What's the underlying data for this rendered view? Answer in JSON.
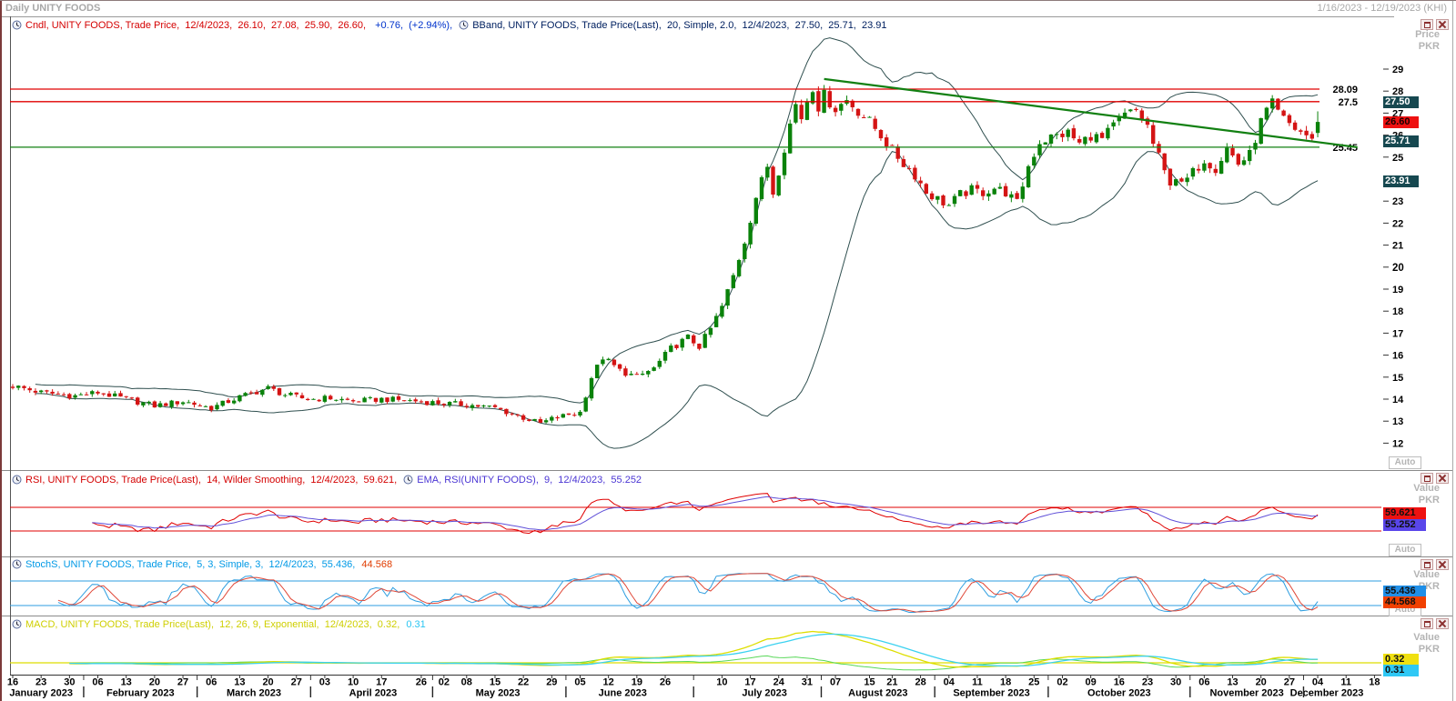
{
  "window": {
    "title": "Daily UNITY FOODS",
    "date_range": "1/16/2023 - 12/19/2023 (KHI)"
  },
  "labels": {
    "auto": "Auto"
  },
  "axis_headers": {
    "price": {
      "l1": "Price",
      "l2": "PKR"
    },
    "value": {
      "l1": "Value",
      "l2": "PKR"
    }
  },
  "legends": {
    "candle": "Cndl, UNITY FOODS, Trade Price,  12/4/2023,  26.10,  27.08,  25.90,  26.60,  ",
    "candle_change": "+0.76,  (+2.94%), ",
    "bband": "BBand, UNITY FOODS, Trade Price(Last),  20, Simple, 2.0,  12/4/2023,  27.50,  25.71,  23.91",
    "rsi": "RSI, UNITY FOODS, Trade Price(Last),  14, Wilder Smoothing,  12/4/2023,  59.621, ",
    "rsi_ema": "EMA, RSI(UNITY FOODS),  9,  12/4/2023,  55.252",
    "stoch": "StochS, UNITY FOODS, Trade Price,  5, 3, Simple, 3,  12/4/2023,  55.436, ",
    "stoch_d": "44.568",
    "macd": "MACD, UNITY FOODS, Trade Price(Last),  12, 26, 9, Exponential,  12/4/2023,  0.32, ",
    "macd_signal": "0.31"
  },
  "badges": {
    "price": [
      {
        "value": "27.50",
        "num": 27.5,
        "bg": "#164850",
        "fg": "#ffffff"
      },
      {
        "value": "26.60",
        "num": 26.6,
        "bg": "#ee1111",
        "fg": "#1a0000"
      },
      {
        "value": "25.71",
        "num": 25.71,
        "bg": "#164850",
        "fg": "#ffffff"
      },
      {
        "value": "23.91",
        "num": 23.91,
        "bg": "#164850",
        "fg": "#ffffff"
      }
    ],
    "rsi": [
      {
        "value": "59.621",
        "num": 59.621,
        "bg": "#ee1111",
        "fg": "#111111"
      },
      {
        "value": "55.252",
        "num": 55.252,
        "bg": "#5946ea",
        "fg": "#111111"
      }
    ],
    "stoch": [
      {
        "value": "55.436",
        "num": 55.436,
        "bg": "#1f8fe8",
        "fg": "#111111"
      },
      {
        "value": "44.568",
        "num": 44.568,
        "bg": "#f04000",
        "fg": "#111111"
      }
    ],
    "macd": [
      {
        "value": "0.32",
        "num": 0.32,
        "bg": "#f0e010",
        "fg": "#111111"
      },
      {
        "value": "0.31",
        "num": 0.31,
        "bg": "#2fc8f5",
        "fg": "#111111"
      }
    ]
  },
  "chart_data": {
    "type": "candlestick",
    "symbol": "UNITY FOODS",
    "periodicity": "Daily",
    "date_range": "1/16/2023 - 12/19/2023",
    "currency": "PKR",
    "last_candle": {
      "date": "12/4/2023",
      "open": 26.1,
      "high": 27.08,
      "low": 25.9,
      "close": 26.6,
      "change": "+0.76",
      "change_pct": "+2.94%"
    },
    "bollinger": {
      "period": 20,
      "type": "Simple",
      "deviations": 2.0,
      "upper": 27.5,
      "middle": 25.71,
      "lower": 23.91
    },
    "rsi": {
      "period": 14,
      "smoothing": "Wilder Smoothing",
      "value": 59.621,
      "ema_period": 9,
      "ema_value": 55.252,
      "levels": [
        70,
        30
      ]
    },
    "stoch": {
      "k": 5,
      "slowing": 3,
      "type": "Simple",
      "d": 3,
      "k_value": 55.436,
      "d_value": 44.568,
      "levels": [
        80,
        20
      ]
    },
    "macd": {
      "fast": 12,
      "slow": 26,
      "signal": 9,
      "type": "Exponential",
      "value": 0.32,
      "signal_value": 0.31
    },
    "hlines": [
      {
        "price": 28.09,
        "label": "28.09",
        "color": "#e00000"
      },
      {
        "price": 27.52,
        "label": "27.5",
        "color": "#e00000"
      },
      {
        "price": 25.45,
        "label": "25.45",
        "color": "#128012"
      }
    ],
    "trendline": {
      "from_t": 143,
      "from_price": 28.55,
      "to_t": 237,
      "to_price": 25.45,
      "color": "#128012"
    },
    "price_axis": {
      "min": 12,
      "max": 29,
      "ticks": [
        29,
        28,
        27,
        26,
        25,
        24,
        23,
        22,
        21,
        20,
        19,
        18,
        17,
        16,
        15,
        14,
        13,
        12
      ],
      "bold_tick": 20
    },
    "close_anchors": [
      [
        0,
        14.6
      ],
      [
        5,
        14.3
      ],
      [
        11,
        14.15
      ],
      [
        15,
        14.3
      ],
      [
        20,
        14.0
      ],
      [
        25,
        13.7
      ],
      [
        30,
        13.9
      ],
      [
        35,
        13.6
      ],
      [
        40,
        14.1
      ],
      [
        45,
        14.5
      ],
      [
        48,
        14.2
      ],
      [
        52,
        14.0
      ],
      [
        56,
        14.05
      ],
      [
        60,
        13.9
      ],
      [
        65,
        14.0
      ],
      [
        72,
        13.9
      ],
      [
        76,
        13.8
      ],
      [
        80,
        13.75
      ],
      [
        85,
        13.6
      ],
      [
        90,
        13.15
      ],
      [
        93,
        12.9
      ],
      [
        95,
        13.1
      ],
      [
        98,
        13.3
      ],
      [
        100,
        13.4
      ],
      [
        102,
        15.0
      ],
      [
        104,
        15.9
      ],
      [
        107,
        15.3
      ],
      [
        110,
        15.0
      ],
      [
        113,
        15.4
      ],
      [
        116,
        16.3
      ],
      [
        119,
        16.8
      ],
      [
        121,
        16.4
      ],
      [
        123,
        17.2
      ],
      [
        125,
        18.2
      ],
      [
        127,
        19.6
      ],
      [
        129,
        21.2
      ],
      [
        131,
        23.2
      ],
      [
        133,
        24.6
      ],
      [
        134,
        23.4
      ],
      [
        135,
        24.4
      ],
      [
        137,
        26.5
      ],
      [
        138,
        27.4
      ],
      [
        139,
        26.8
      ],
      [
        140,
        27.6
      ],
      [
        141,
        28.2
      ],
      [
        142,
        27.3
      ],
      [
        143,
        27.8
      ],
      [
        145,
        27.2
      ],
      [
        147,
        27.6
      ],
      [
        149,
        27.1
      ],
      [
        151,
        26.6
      ],
      [
        153,
        26.0
      ],
      [
        155,
        25.3
      ],
      [
        157,
        24.7
      ],
      [
        159,
        24.2
      ],
      [
        161,
        23.4
      ],
      [
        163,
        23.1
      ],
      [
        165,
        22.8
      ],
      [
        167,
        23.3
      ],
      [
        169,
        23.5
      ],
      [
        171,
        23.4
      ],
      [
        173,
        23.6
      ],
      [
        175,
        23.4
      ],
      [
        177,
        22.9
      ],
      [
        179,
        24.6
      ],
      [
        181,
        25.7
      ],
      [
        183,
        25.9
      ],
      [
        186,
        26.1
      ],
      [
        188,
        25.6
      ],
      [
        190,
        26.0
      ],
      [
        192,
        25.8
      ],
      [
        194,
        26.4
      ],
      [
        196,
        26.9
      ],
      [
        198,
        27.1
      ],
      [
        200,
        26.4
      ],
      [
        201,
        25.6
      ],
      [
        202,
        25.0
      ],
      [
        203,
        24.3
      ],
      [
        204,
        23.9
      ],
      [
        205,
        24.1
      ],
      [
        206,
        23.7
      ],
      [
        208,
        24.3
      ],
      [
        210,
        24.9
      ],
      [
        212,
        24.5
      ],
      [
        214,
        25.4
      ],
      [
        216,
        24.7
      ],
      [
        218,
        25.1
      ],
      [
        220,
        26.6
      ],
      [
        221,
        27.1
      ],
      [
        222,
        27.4
      ],
      [
        223,
        27.0
      ],
      [
        224,
        26.7
      ],
      [
        226,
        26.3
      ],
      [
        228,
        26.0
      ],
      [
        229,
        25.84
      ],
      [
        230,
        26.6
      ]
    ],
    "months": [
      {
        "label": "January 2023",
        "days": [
          {
            "d": "16",
            "t": 0
          },
          {
            "d": "23",
            "t": 5
          },
          {
            "d": "30",
            "t": 10
          }
        ]
      },
      {
        "label": "February 2023",
        "days": [
          {
            "d": "06",
            "t": 15
          },
          {
            "d": "13",
            "t": 20
          },
          {
            "d": "20",
            "t": 25
          },
          {
            "d": "27",
            "t": 30
          }
        ]
      },
      {
        "label": "March 2023",
        "days": [
          {
            "d": "06",
            "t": 35
          },
          {
            "d": "13",
            "t": 40
          },
          {
            "d": "20",
            "t": 45
          },
          {
            "d": "27",
            "t": 50
          }
        ]
      },
      {
        "label": "April 2023",
        "days": [
          {
            "d": "03",
            "t": 55
          },
          {
            "d": "10",
            "t": 60
          },
          {
            "d": "17",
            "t": 65
          },
          {
            "d": "26",
            "t": 72
          }
        ]
      },
      {
        "label": "May 2023",
        "days": [
          {
            "d": "02",
            "t": 76
          },
          {
            "d": "08",
            "t": 80
          },
          {
            "d": "15",
            "t": 85
          },
          {
            "d": "22",
            "t": 90
          },
          {
            "d": "29",
            "t": 95
          }
        ]
      },
      {
        "label": "June 2023",
        "days": [
          {
            "d": "05",
            "t": 100
          },
          {
            "d": "12",
            "t": 105
          },
          {
            "d": "19",
            "t": 110
          },
          {
            "d": "26",
            "t": 115
          }
        ]
      },
      {
        "label": "July 2023",
        "days": [
          {
            "d": "10",
            "t": 125
          },
          {
            "d": "17",
            "t": 130
          },
          {
            "d": "24",
            "t": 135
          },
          {
            "d": "31",
            "t": 140
          }
        ]
      },
      {
        "label": "August 2023",
        "days": [
          {
            "d": "07",
            "t": 145
          },
          {
            "d": "15",
            "t": 151
          },
          {
            "d": "21",
            "t": 155
          },
          {
            "d": "28",
            "t": 160
          }
        ]
      },
      {
        "label": "September 2023",
        "days": [
          {
            "d": "04",
            "t": 165
          },
          {
            "d": "11",
            "t": 170
          },
          {
            "d": "18",
            "t": 175
          },
          {
            "d": "25",
            "t": 180
          }
        ]
      },
      {
        "label": "October 2023",
        "days": [
          {
            "d": "02",
            "t": 185
          },
          {
            "d": "09",
            "t": 190
          },
          {
            "d": "16",
            "t": 195
          },
          {
            "d": "23",
            "t": 200
          },
          {
            "d": "30",
            "t": 205
          }
        ]
      },
      {
        "label": "November 2023",
        "days": [
          {
            "d": "06",
            "t": 210
          },
          {
            "d": "13",
            "t": 215
          },
          {
            "d": "20",
            "t": 220
          },
          {
            "d": "27",
            "t": 225
          }
        ]
      },
      {
        "label": "December 2023",
        "days": [
          {
            "d": "04",
            "t": 230
          },
          {
            "d": "11",
            "t": 235
          },
          {
            "d": "18",
            "t": 240
          }
        ]
      }
    ],
    "colors": {
      "candle_up": "#0a820a",
      "candle_down": "#d41414",
      "bband": "#2F4F4F",
      "rsi_line": "#e00000",
      "rsi_ema": "#6050d8",
      "stoch_k": "#2e9ee0",
      "stoch_d": "#e04838",
      "macd_line": "#dede00",
      "macd_signal": "#3cd2f0",
      "macd_osc": "#58d858"
    }
  }
}
